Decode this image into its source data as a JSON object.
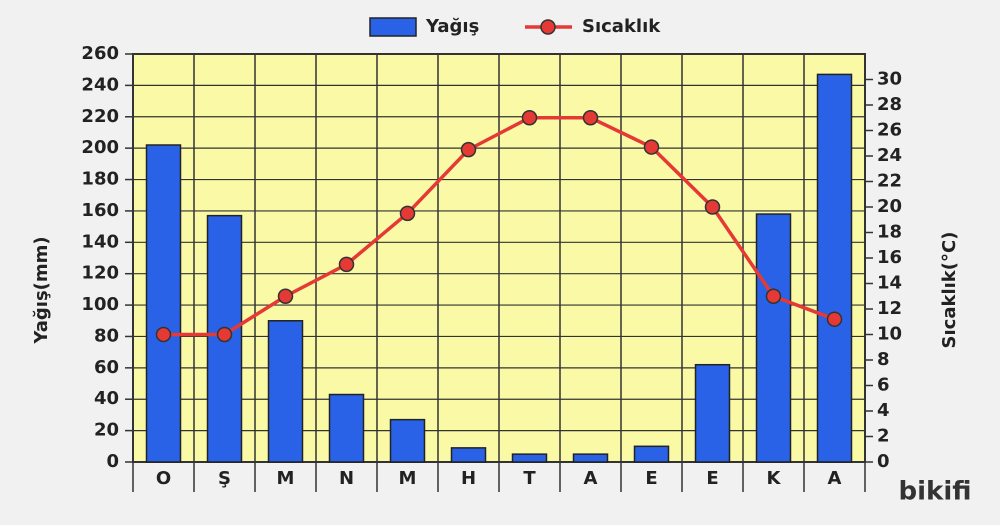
{
  "chart_data": {
    "type": "bar",
    "categories": [
      "O",
      "Ş",
      "M",
      "N",
      "M",
      "H",
      "T",
      "A",
      "E",
      "E",
      "K",
      "A"
    ],
    "series": [
      {
        "name": "Yağış",
        "type": "bar",
        "color": "#2962e6",
        "values": [
          202,
          157,
          90,
          43,
          27,
          9,
          5,
          5,
          10,
          62,
          158,
          247
        ]
      },
      {
        "name": "Sıcaklık",
        "type": "line",
        "axis": "y2",
        "color": "#e53935",
        "values": [
          10,
          10,
          13,
          15.5,
          19.5,
          24.5,
          27,
          27,
          24.7,
          20,
          13,
          11.2
        ]
      }
    ],
    "ylabel": "Yağış(mm)",
    "y2label": "Sıcaklık(°C)",
    "ylim": [
      0,
      260
    ],
    "yticks": [
      0,
      20,
      40,
      60,
      80,
      100,
      120,
      140,
      160,
      180,
      200,
      220,
      240,
      260
    ],
    "y2lim": [
      0,
      32
    ],
    "y2ticks": [
      0,
      2,
      4,
      6,
      8,
      10,
      12,
      14,
      16,
      18,
      20,
      22,
      24,
      26,
      28,
      30
    ],
    "grid": true,
    "legend": "top",
    "plot_background": "#fafaa6"
  },
  "watermark": "bikifi"
}
